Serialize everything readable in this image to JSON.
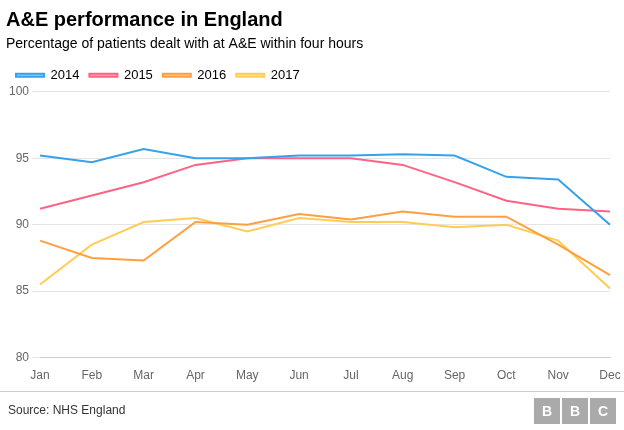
{
  "chart_data": {
    "type": "line",
    "title": "A&E performance in England",
    "subtitle": "Percentage of patients dealt with at A&E within four hours",
    "source": "Source: NHS England",
    "annotations": [
      "BBC"
    ],
    "categories": [
      "Jan",
      "Feb",
      "Mar",
      "Apr",
      "May",
      "Jun",
      "Jul",
      "Aug",
      "Sep",
      "Oct",
      "Nov",
      "Dec"
    ],
    "series": [
      {
        "name": "2014",
        "values": [
          95.2,
          94.7,
          95.7,
          95.0,
          95.0,
          95.2,
          95.2,
          95.3,
          95.2,
          93.6,
          93.4,
          90.0
        ]
      },
      {
        "name": "2015",
        "values": [
          91.2,
          92.2,
          93.2,
          94.5,
          95.0,
          95.0,
          95.0,
          94.5,
          93.2,
          91.8,
          91.2,
          91.0
        ]
      },
      {
        "name": "2016",
        "values": [
          88.8,
          87.5,
          87.3,
          90.2,
          90.0,
          90.8,
          90.4,
          91.0,
          90.6,
          90.6,
          88.5,
          86.2
        ]
      },
      {
        "name": "2017",
        "values": [
          85.5,
          88.5,
          90.2,
          90.5,
          89.5,
          90.5,
          90.2,
          90.2,
          89.8,
          90.0,
          88.8,
          85.2
        ]
      }
    ],
    "ylim": [
      80,
      100
    ],
    "yticks": [
      80,
      85,
      90,
      95,
      100
    ],
    "grid": true,
    "legend": "upper left"
  }
}
